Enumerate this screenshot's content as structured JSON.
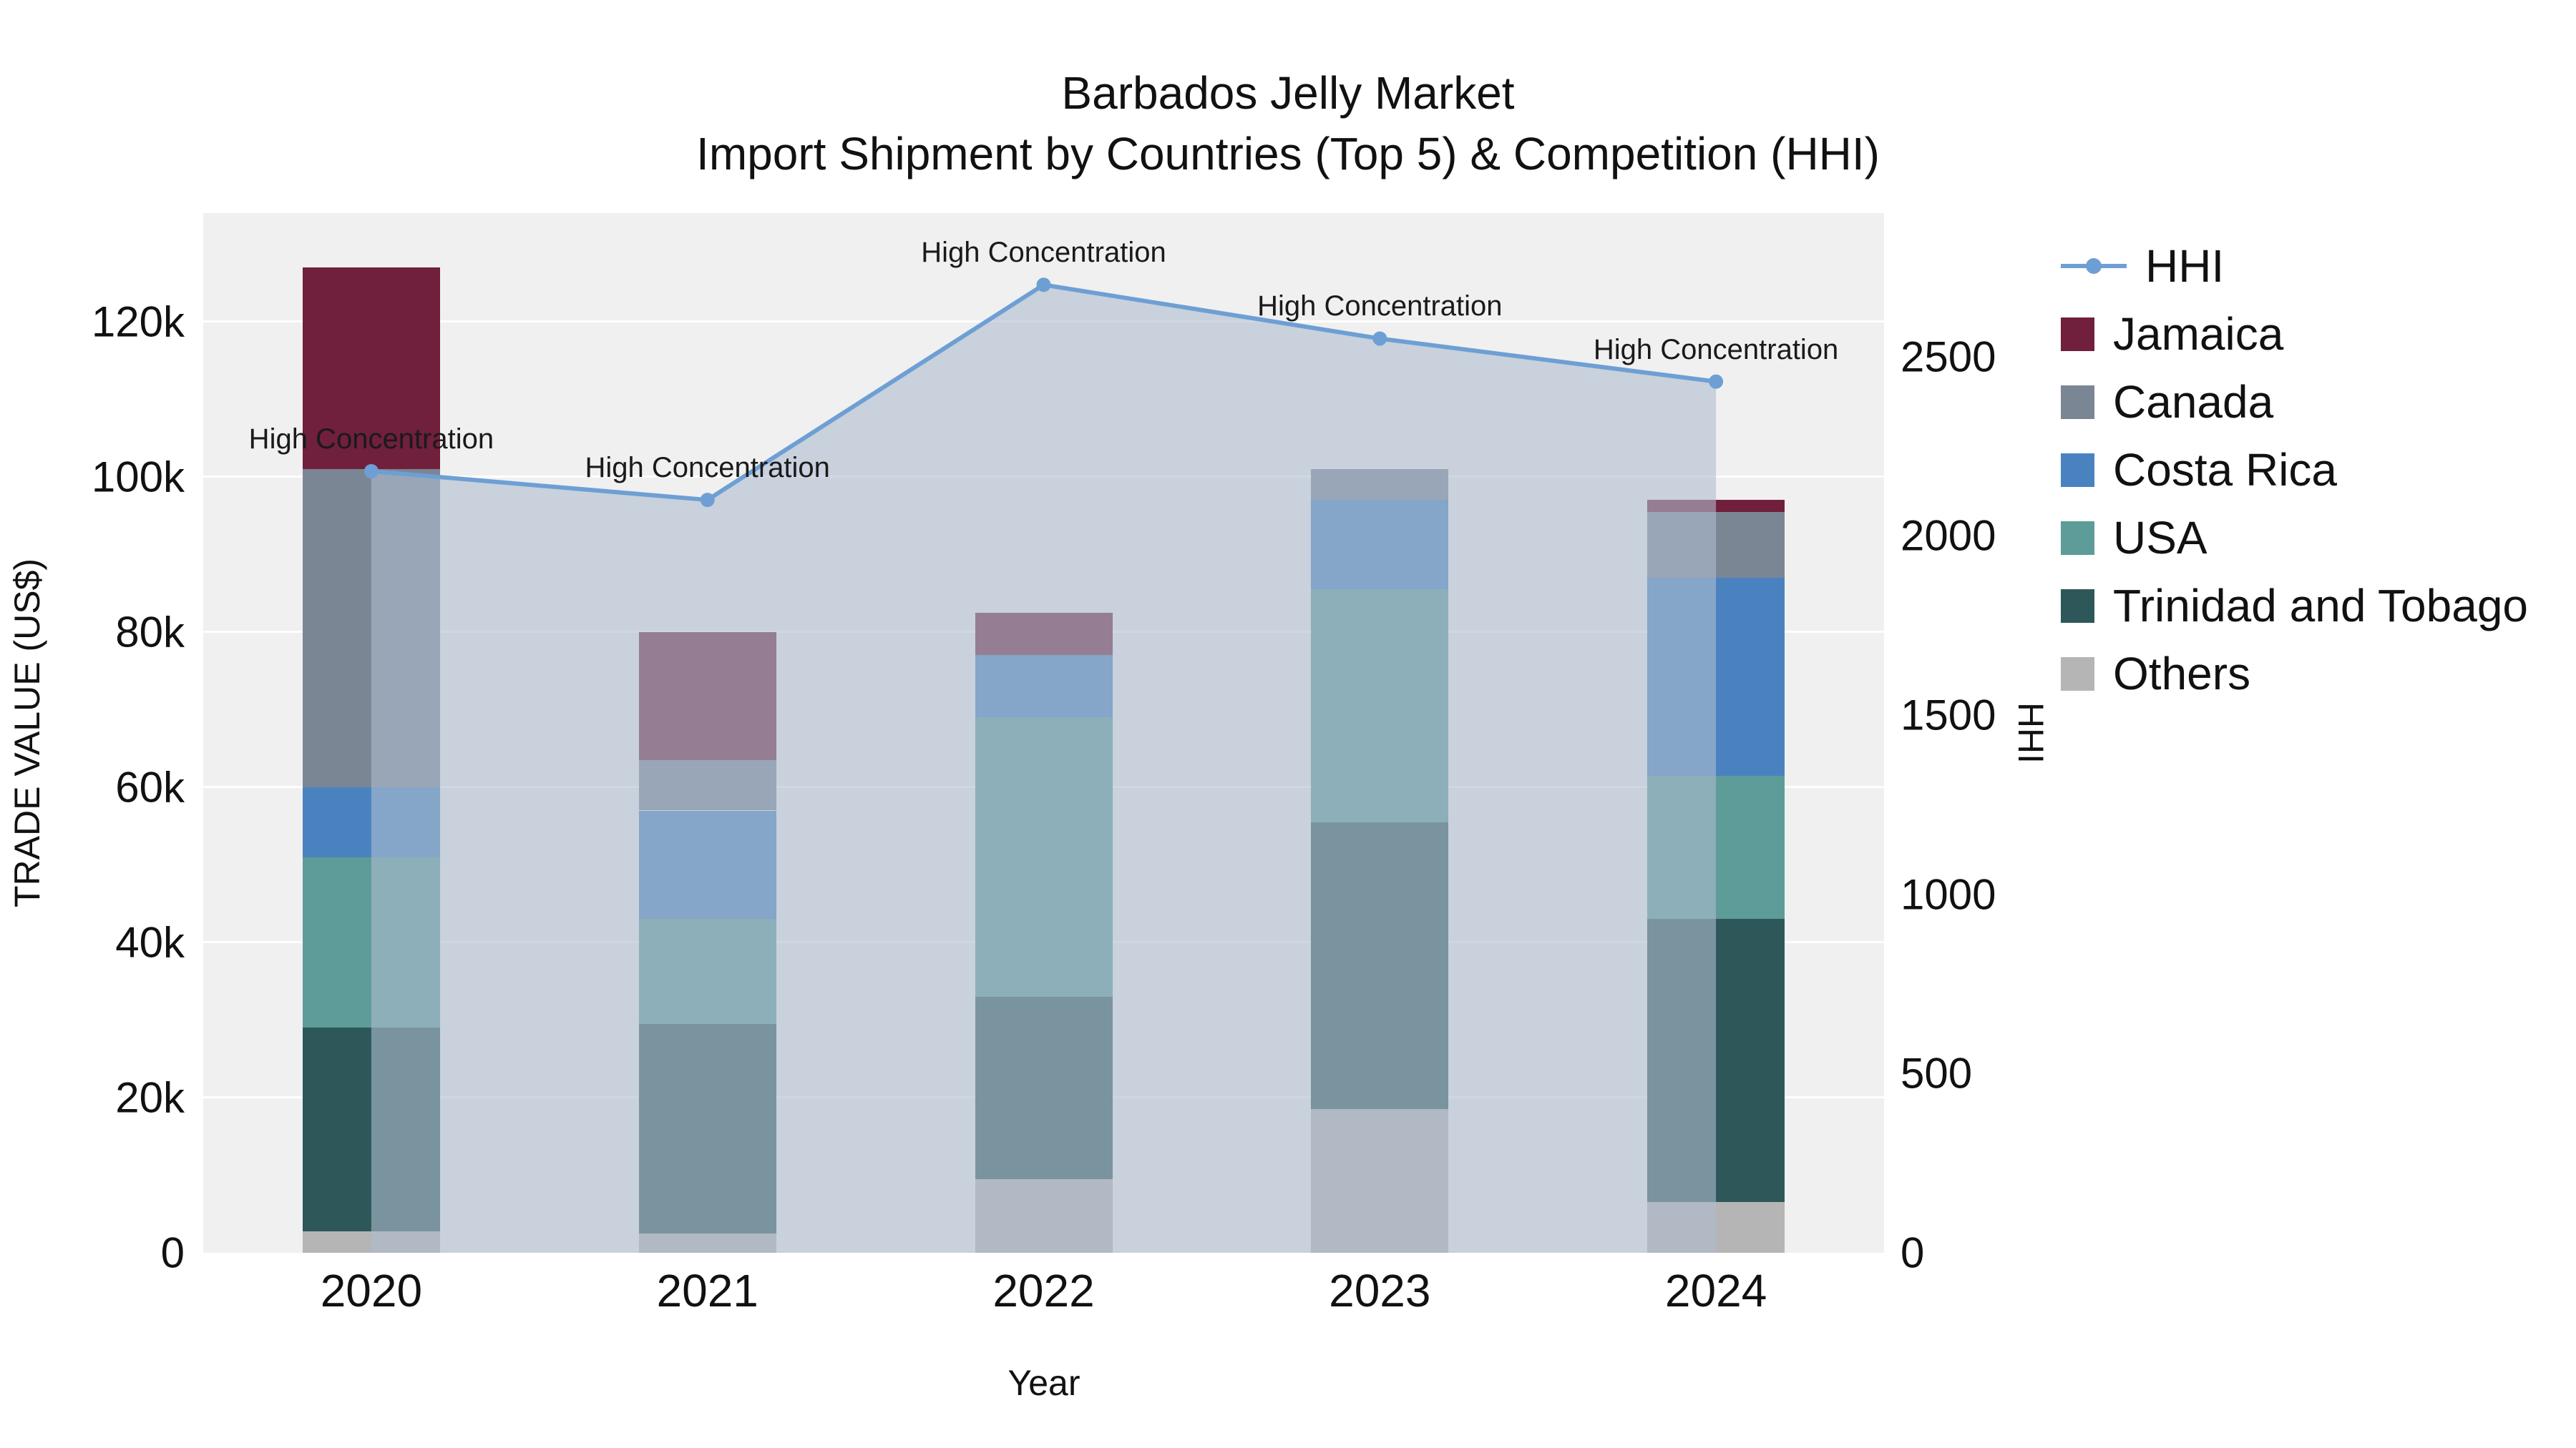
{
  "title": {
    "line1": "Barbados Jelly Market",
    "line2": "Import Shipment by Countries (Top 5) & Competition (HHI)"
  },
  "axis_titles": {
    "left": "TRADE VALUE (US$)",
    "bottom": "Year",
    "right": "HHI"
  },
  "legend": {
    "items": [
      {
        "label": "HHI",
        "type": "line",
        "color": "#6e9fd4"
      },
      {
        "label": "Jamaica",
        "type": "swatch",
        "color": "#701f3d"
      },
      {
        "label": "Canada",
        "type": "swatch",
        "color": "#7b8695"
      },
      {
        "label": "Costa Rica",
        "type": "swatch",
        "color": "#4a82c0"
      },
      {
        "label": "USA",
        "type": "swatch",
        "color": "#5d9c98"
      },
      {
        "label": "Trinidad and Tobago",
        "type": "swatch",
        "color": "#2e5759"
      },
      {
        "label": "Others",
        "type": "swatch",
        "color": "#b5b5b5"
      }
    ]
  },
  "chart_data": {
    "type": "bar",
    "subtype": "stacked-bars-with-line-overlay",
    "title": "Barbados Jelly Market — Import Shipment by Countries (Top 5) & Competition (HHI)",
    "categories": [
      "2020",
      "2021",
      "2022",
      "2023",
      "2024"
    ],
    "bar_series": [
      {
        "name": "Others",
        "color": "#b5b5b5",
        "values": [
          2800,
          2500,
          9500,
          18500,
          6500
        ]
      },
      {
        "name": "Trinidad and Tobago",
        "color": "#2e5759",
        "values": [
          26200,
          27000,
          23500,
          37000,
          36500
        ]
      },
      {
        "name": "USA",
        "color": "#5d9c98",
        "values": [
          22000,
          13500,
          36000,
          30000,
          18500
        ]
      },
      {
        "name": "Costa Rica",
        "color": "#4a82c0",
        "values": [
          9000,
          14000,
          8000,
          11500,
          25500
        ]
      },
      {
        "name": "Canada",
        "color": "#7b8695",
        "values": [
          41000,
          6500,
          0,
          4000,
          8500
        ]
      },
      {
        "name": "Jamaica",
        "color": "#701f3d",
        "values": [
          26000,
          16500,
          5500,
          0,
          1500
        ]
      }
    ],
    "bar_totals": [
      127000,
      80000,
      82500,
      101000,
      97000
    ],
    "line_series": {
      "name": "HHI",
      "axis": "right",
      "color": "#6e9fd4",
      "area_fill": "rgba(173,188,206,0.6)",
      "values": [
        2180,
        2100,
        2700,
        2550,
        2430
      ]
    },
    "annotations": [
      "High Concentration",
      "High Concentration",
      "High Concentration",
      "High Concentration",
      "High Concentration"
    ],
    "left_axis": {
      "label": "TRADE VALUE (US$)",
      "ticks": [
        0,
        20000,
        40000,
        60000,
        80000,
        100000,
        120000
      ],
      "tick_labels": [
        "0",
        "20k",
        "40k",
        "60k",
        "80k",
        "100k",
        "120k"
      ],
      "max": 134000
    },
    "right_axis": {
      "label": "HHI",
      "ticks": [
        0,
        500,
        1000,
        1500,
        2000,
        2500
      ],
      "tick_labels": [
        "0",
        "500",
        "1000",
        "1500",
        "2000",
        "2500"
      ],
      "max": 2900
    },
    "x_axis": {
      "label": "Year"
    },
    "plot_background": "#f0f0f0",
    "gridline_color": "rgba(255,255,255,0.9)",
    "legend_position": "right"
  }
}
